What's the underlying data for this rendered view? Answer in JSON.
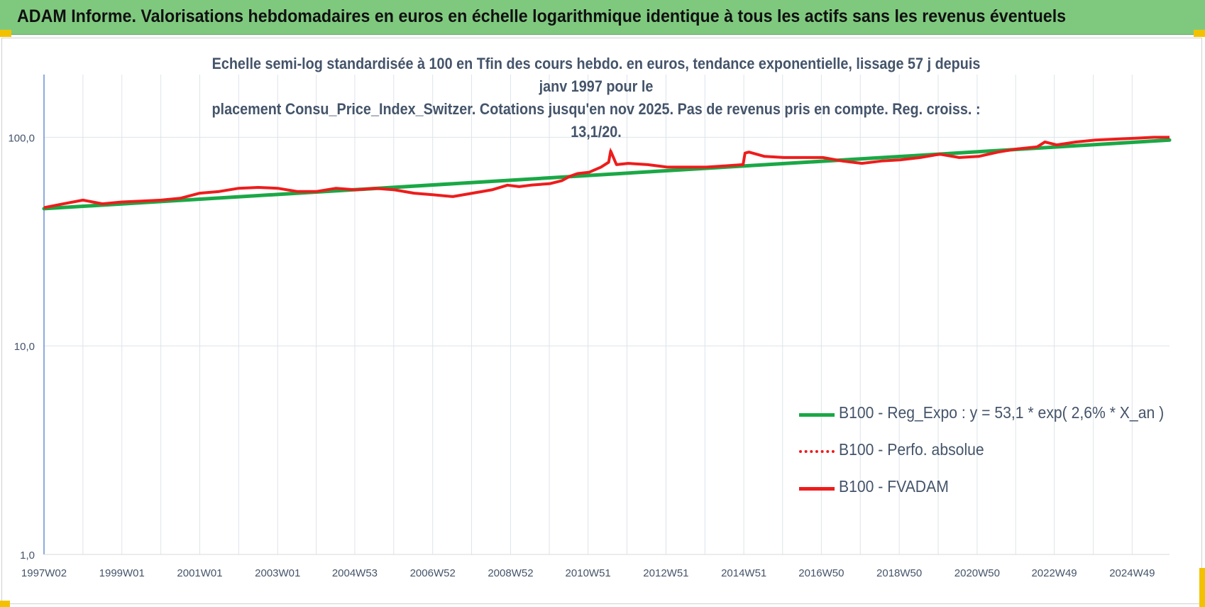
{
  "header": {
    "title": "ADAM Informe. Valorisations hebdomadaires en euros en échelle logarithmique identique à tous les actifs sans les revenus éventuels"
  },
  "colors": {
    "banner": "#7fc97f",
    "trend": "#1aa846",
    "fvadam": "#ee1c1c",
    "perfo": "#ee1c1c",
    "corner": "#f2c200"
  },
  "chart_data": {
    "type": "line",
    "title_lines": [
      "Echelle semi-log standardisée à 100 en Tfin des cours hebdo. en euros, tendance exponentielle, lissage 57 j depuis janv 1997 pour le",
      "placement Consu_Price_Index_Switzer. Cotations jusqu'en nov 2025. Pas de revenus pris en compte. Reg. croiss. : 13,1/20."
    ],
    "y_scale": "log",
    "ylim": [
      1,
      200
    ],
    "y_ticks": [
      {
        "value": 1,
        "label": "1,0"
      },
      {
        "value": 10,
        "label": "10,0"
      },
      {
        "value": 100,
        "label": "100,0"
      }
    ],
    "xlim": [
      1997.0,
      2025.9
    ],
    "x_ticks": [
      {
        "value": 1997.0,
        "label": "1997W02"
      },
      {
        "value": 1999.0,
        "label": "1999W01"
      },
      {
        "value": 2001.0,
        "label": "2001W01"
      },
      {
        "value": 2003.0,
        "label": "2003W01"
      },
      {
        "value": 2004.98,
        "label": "2004W53"
      },
      {
        "value": 2006.98,
        "label": "2006W52"
      },
      {
        "value": 2008.98,
        "label": "2008W52"
      },
      {
        "value": 2010.97,
        "label": "2010W51"
      },
      {
        "value": 2012.97,
        "label": "2012W51"
      },
      {
        "value": 2014.97,
        "label": "2014W51"
      },
      {
        "value": 2016.96,
        "label": "2016W50"
      },
      {
        "value": 2018.96,
        "label": "2018W50"
      },
      {
        "value": 2020.96,
        "label": "2020W50"
      },
      {
        "value": 2022.94,
        "label": "2022W49"
      },
      {
        "value": 2024.94,
        "label": "2024W49"
      }
    ],
    "legend_position": "lower-right",
    "grid": true,
    "series": [
      {
        "name": "B100 - Reg_Expo : y = 53,1 * exp( 2,6% *  X_an )",
        "style": "solid",
        "x": [
          1997.0,
          2025.9
        ],
        "y": [
          45.5,
          97.0
        ]
      },
      {
        "name": "B100 - Perfo. absolue",
        "style": "dotted",
        "x": [
          1997.0,
          1997.5,
          1998.0,
          1998.5,
          1999.0,
          1999.5,
          2000.0,
          2000.5,
          2001.0,
          2001.5,
          2002.0,
          2002.5,
          2003.0,
          2003.5,
          2004.0,
          2004.5,
          2005.0,
          2005.5,
          2006.0,
          2006.5,
          2007.0,
          2007.5,
          2008.0,
          2008.5,
          2008.9,
          2009.2,
          2009.5,
          2010.0,
          2010.3,
          2010.5,
          2010.7,
          2011.0,
          2011.3,
          2011.5,
          2011.55,
          2011.7,
          2012.0,
          2012.5,
          2013.0,
          2013.5,
          2014.0,
          2014.5,
          2014.95,
          2015.0,
          2015.1,
          2015.5,
          2016.0,
          2016.5,
          2017.0,
          2017.5,
          2018.0,
          2018.5,
          2019.0,
          2019.5,
          2020.0,
          2020.5,
          2021.0,
          2021.5,
          2022.0,
          2022.5,
          2022.7,
          2023.0,
          2023.5,
          2024.0,
          2024.5,
          2025.0,
          2025.5,
          2025.9
        ],
        "y": [
          46,
          48,
          50,
          48,
          49,
          49.5,
          50,
          51,
          54,
          55,
          57,
          57.5,
          57,
          55,
          55,
          57,
          56,
          57,
          56,
          54,
          53,
          52,
          54,
          56,
          59,
          58,
          59,
          60,
          62,
          65,
          67,
          68,
          72,
          76,
          86,
          74,
          75,
          74,
          72,
          72,
          72,
          73,
          74,
          84,
          85,
          81,
          80,
          80,
          80,
          77,
          75,
          77,
          78,
          80,
          83,
          80,
          81,
          85,
          88,
          90,
          95,
          92,
          95,
          97,
          98,
          99,
          100,
          100
        ]
      },
      {
        "name": "B100 - FVADAM",
        "style": "solid",
        "x": [
          1997.0,
          1997.5,
          1998.0,
          1998.5,
          1999.0,
          1999.5,
          2000.0,
          2000.5,
          2001.0,
          2001.5,
          2002.0,
          2002.5,
          2003.0,
          2003.5,
          2004.0,
          2004.5,
          2005.0,
          2005.5,
          2006.0,
          2006.5,
          2007.0,
          2007.5,
          2008.0,
          2008.5,
          2008.9,
          2009.2,
          2009.5,
          2010.0,
          2010.3,
          2010.5,
          2010.7,
          2011.0,
          2011.3,
          2011.5,
          2011.55,
          2011.7,
          2012.0,
          2012.5,
          2013.0,
          2013.5,
          2014.0,
          2014.5,
          2014.95,
          2015.0,
          2015.1,
          2015.5,
          2016.0,
          2016.5,
          2017.0,
          2017.5,
          2018.0,
          2018.5,
          2019.0,
          2019.5,
          2020.0,
          2020.5,
          2021.0,
          2021.5,
          2022.0,
          2022.5,
          2022.7,
          2023.0,
          2023.5,
          2024.0,
          2024.5,
          2025.0,
          2025.5,
          2025.9
        ],
        "y": [
          46,
          48,
          50,
          48,
          49,
          49.5,
          50,
          51,
          54,
          55,
          57,
          57.5,
          57,
          55,
          55,
          57,
          56,
          57,
          56,
          54,
          53,
          52,
          54,
          56,
          59,
          58,
          59,
          60,
          62,
          65,
          67,
          68,
          72,
          76,
          86,
          74,
          75,
          74,
          72,
          72,
          72,
          73,
          74,
          84,
          85,
          81,
          80,
          80,
          80,
          77,
          75,
          77,
          78,
          80,
          83,
          80,
          81,
          85,
          88,
          90,
          95,
          92,
          95,
          97,
          98,
          99,
          100,
          100
        ]
      }
    ]
  }
}
